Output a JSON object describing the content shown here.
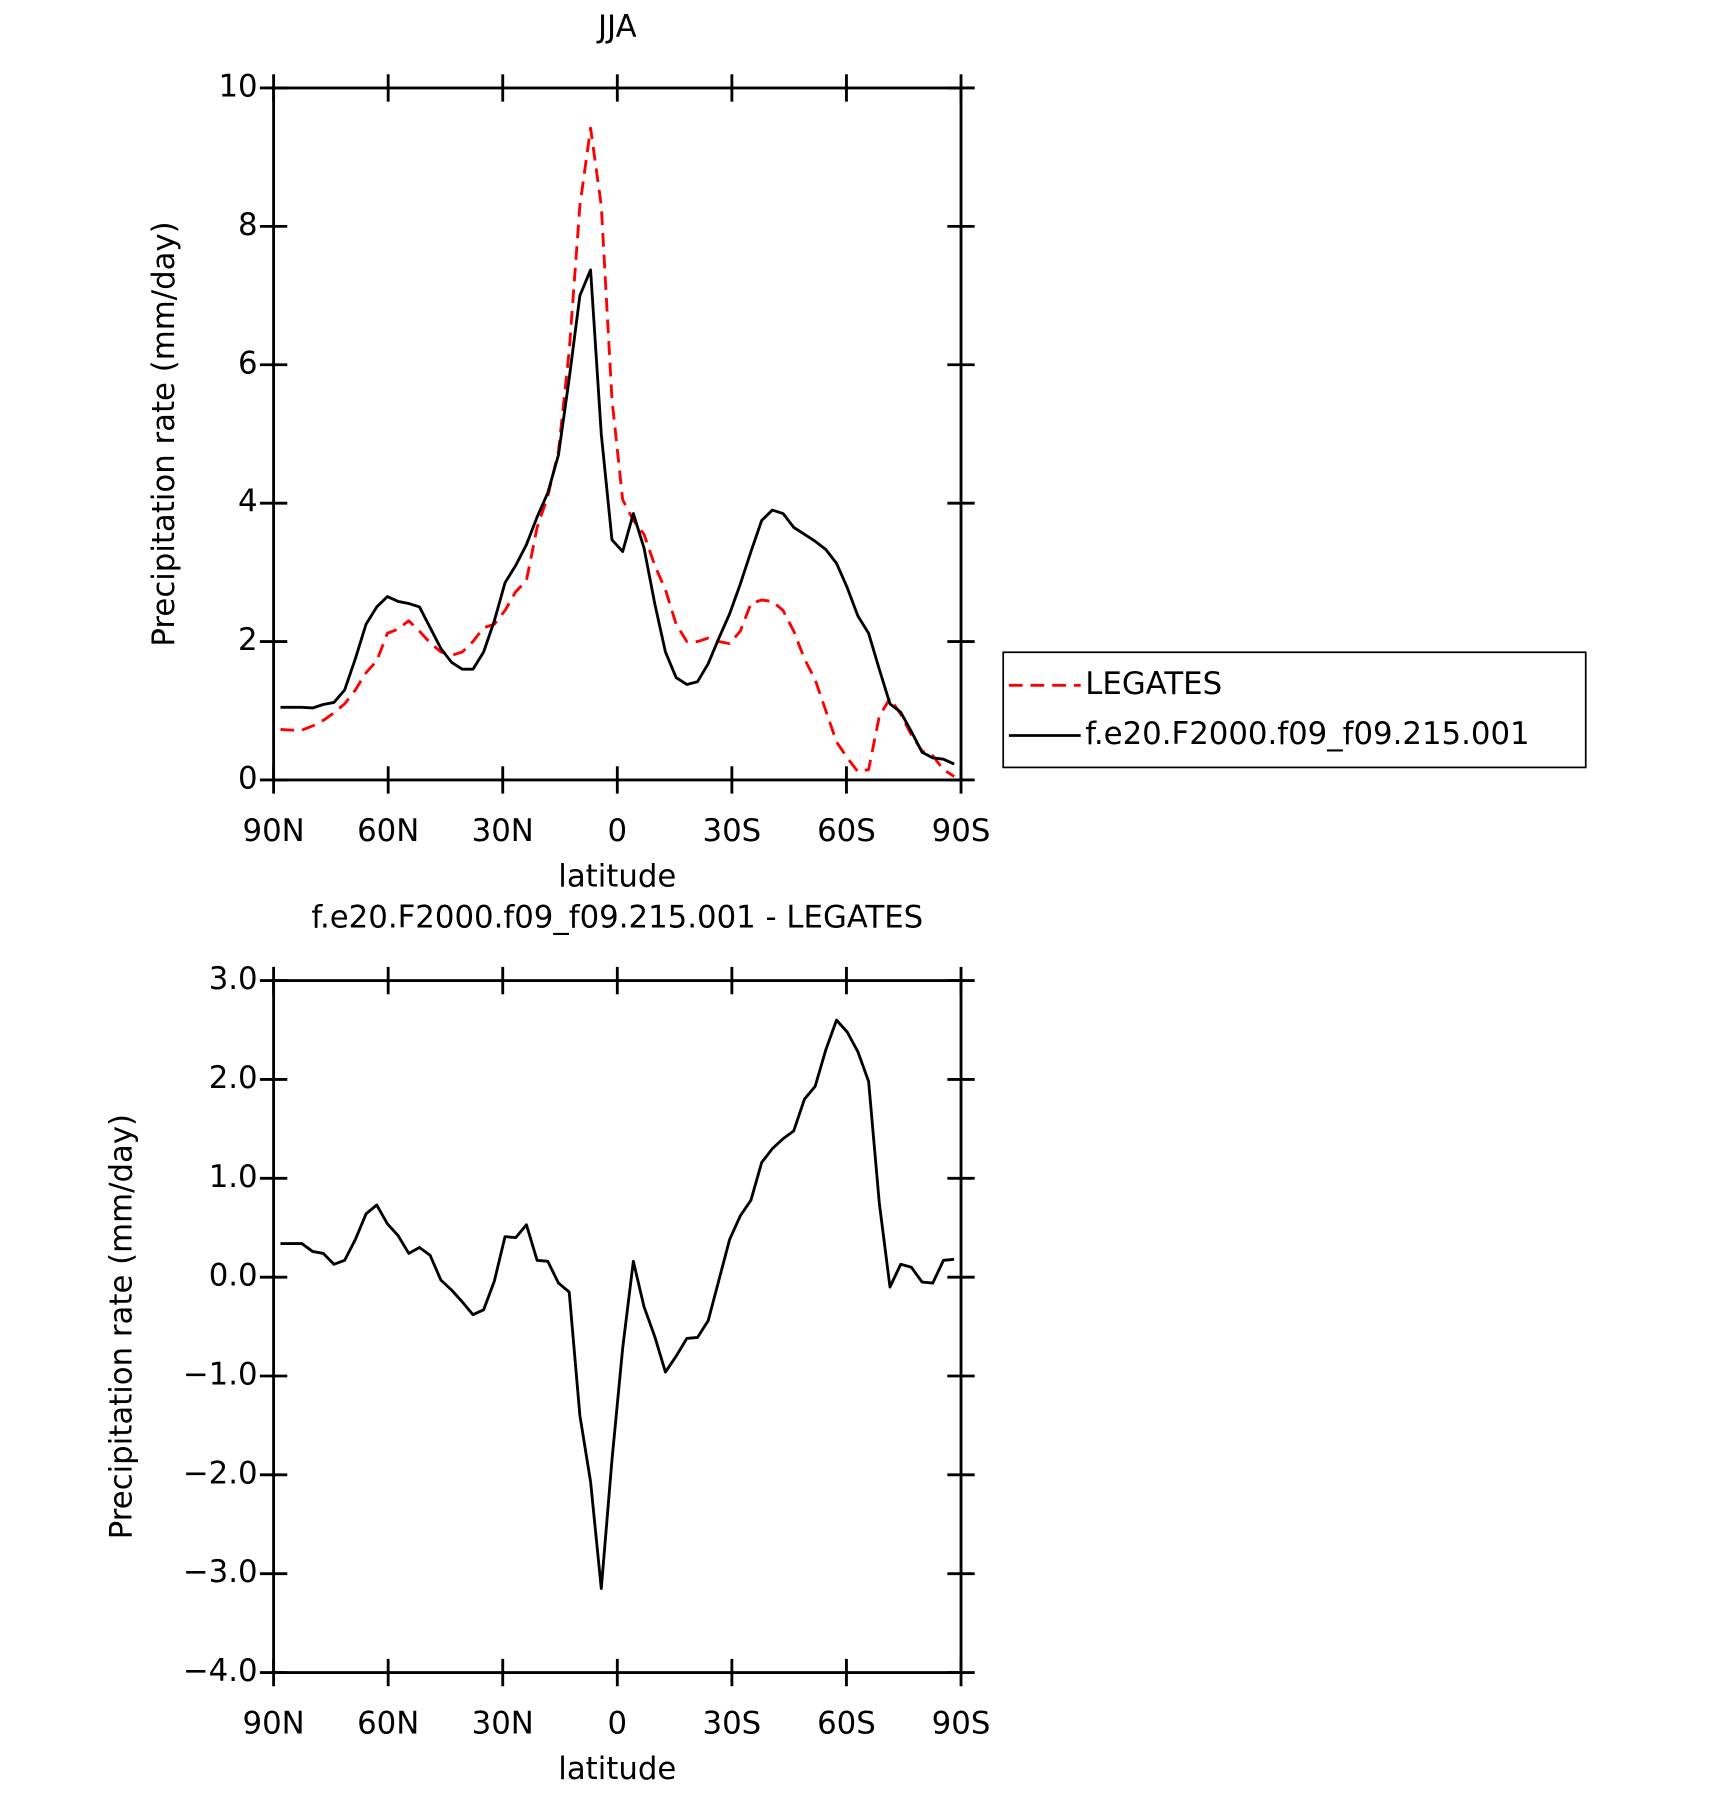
{
  "chart_data": [
    {
      "type": "line",
      "title": "JJA",
      "xlabel": "latitude",
      "ylabel": "Precipitation rate (mm/day)",
      "x": [
        88.2,
        85.4,
        82.6,
        79.8,
        77,
        74.2,
        71.4,
        68.6,
        65.8,
        63,
        60.2,
        57.4,
        54.6,
        51.8,
        49,
        46.2,
        43.4,
        40.6,
        37.8,
        35,
        32.2,
        29.4,
        26.6,
        23.8,
        21,
        18.2,
        15.4,
        12.6,
        9.8,
        7,
        4.2,
        1.4,
        -1.4,
        -4.2,
        -7,
        -9.8,
        -12.6,
        -15.4,
        -18.2,
        -21,
        -23.8,
        -26.6,
        -29.4,
        -32.2,
        -35,
        -37.8,
        -40.6,
        -43.4,
        -46.2,
        -49,
        -51.8,
        -54.6,
        -57.4,
        -60.2,
        -63,
        -65.8,
        -68.6,
        -71.4,
        -74.2,
        -77,
        -79.8,
        -82.6,
        -85.4,
        -88.2
      ],
      "series": [
        {
          "name": "LEGATES",
          "color": "#ff0000",
          "style": "dashed",
          "values": [
            0.73,
            0.72,
            0.72,
            0.78,
            0.86,
            0.97,
            1.1,
            1.3,
            1.55,
            1.72,
            2.12,
            2.18,
            2.3,
            2.15,
            1.98,
            1.85,
            1.8,
            1.85,
            2.0,
            2.2,
            2.25,
            2.45,
            2.72,
            2.88,
            3.65,
            4.1,
            4.75,
            6.2,
            8.3,
            9.42,
            8.3,
            5.5,
            4.05,
            3.75,
            3.55,
            3.1,
            2.75,
            2.25,
            2.0,
            2.0,
            2.05,
            2.0,
            1.97,
            2.15,
            2.55,
            2.6,
            2.58,
            2.45,
            2.15,
            1.75,
            1.45,
            1.0,
            0.55,
            0.32,
            0.12,
            0.15,
            0.92,
            1.18,
            0.95,
            0.65,
            0.42,
            0.35,
            0.15,
            0.05
          ]
        },
        {
          "name": "f.e20.F2000.f09_f09.215.001",
          "color": "#000000",
          "style": "solid",
          "values": [
            1.05,
            1.05,
            1.05,
            1.04,
            1.09,
            1.12,
            1.3,
            1.75,
            2.25,
            2.5,
            2.65,
            2.58,
            2.55,
            2.5,
            2.2,
            1.9,
            1.7,
            1.6,
            1.6,
            1.85,
            2.3,
            2.85,
            3.1,
            3.4,
            3.8,
            4.15,
            4.7,
            5.8,
            7.0,
            7.37,
            5.0,
            3.47,
            3.3,
            3.85,
            3.35,
            2.55,
            1.85,
            1.48,
            1.38,
            1.42,
            1.68,
            2.05,
            2.4,
            2.83,
            3.3,
            3.75,
            3.9,
            3.85,
            3.65,
            3.55,
            3.45,
            3.33,
            3.13,
            2.78,
            2.37,
            2.12,
            1.6,
            1.1,
            0.98,
            0.7,
            0.4,
            0.32,
            0.3,
            0.23
          ]
        }
      ],
      "xlim": [
        90,
        -90
      ],
      "xticks": [
        {
          "value": 90,
          "label": "90N"
        },
        {
          "value": 60,
          "label": "60N"
        },
        {
          "value": 30,
          "label": "30N"
        },
        0,
        {
          "value": -30,
          "label": "30S"
        },
        {
          "value": -60,
          "label": "60S"
        },
        {
          "value": -90,
          "label": "90S"
        }
      ],
      "ylim": [
        0,
        10
      ],
      "yticks": [
        0,
        2,
        4,
        6,
        8,
        10
      ],
      "legend": "right"
    },
    {
      "type": "line",
      "title": "f.e20.F2000.f09_f09.215.001 - LEGATES",
      "xlabel": "latitude",
      "ylabel": "Precipitation rate (mm/day)",
      "x": [
        88.2,
        85.4,
        82.6,
        79.8,
        77,
        74.2,
        71.4,
        68.6,
        65.8,
        63,
        60.2,
        57.4,
        54.6,
        51.8,
        49,
        46.2,
        43.4,
        40.6,
        37.8,
        35,
        32.2,
        29.4,
        26.6,
        23.8,
        21,
        18.2,
        15.4,
        12.6,
        9.8,
        7,
        4.2,
        1.4,
        -1.4,
        -4.2,
        -7,
        -9.8,
        -12.6,
        -15.4,
        -18.2,
        -21,
        -23.8,
        -26.6,
        -29.4,
        -32.2,
        -35,
        -37.8,
        -40.6,
        -43.4,
        -46.2,
        -49,
        -51.8,
        -54.6,
        -57.4,
        -60.2,
        -63,
        -65.8,
        -68.6,
        -71.4,
        -74.2,
        -77,
        -79.8,
        -82.6,
        -85.4,
        -88.2
      ],
      "series": [
        {
          "color": "#000000",
          "style": "solid",
          "values": [
            0.34,
            0.34,
            0.34,
            0.26,
            0.24,
            0.13,
            0.17,
            0.38,
            0.64,
            0.73,
            0.54,
            0.42,
            0.24,
            0.3,
            0.22,
            -0.03,
            -0.13,
            -0.25,
            -0.38,
            -0.33,
            -0.04,
            0.41,
            0.4,
            0.53,
            0.17,
            0.16,
            -0.06,
            -0.15,
            -1.4,
            -2.07,
            -3.15,
            -1.85,
            -0.72,
            0.16,
            -0.3,
            -0.6,
            -0.96,
            -0.8,
            -0.62,
            -0.61,
            -0.44,
            -0.03,
            0.38,
            0.62,
            0.78,
            1.16,
            1.3,
            1.4,
            1.48,
            1.8,
            1.93,
            2.3,
            2.6,
            2.48,
            2.28,
            1.98,
            0.75,
            -0.1,
            0.13,
            0.1,
            -0.05,
            -0.06,
            0.17,
            0.18
          ]
        }
      ],
      "xlim": [
        90,
        -90
      ],
      "xticks": [
        {
          "value": 90,
          "label": "90N"
        },
        {
          "value": 60,
          "label": "60N"
        },
        {
          "value": 30,
          "label": "30N"
        },
        0,
        {
          "value": -30,
          "label": "30S"
        },
        {
          "value": -60,
          "label": "60S"
        },
        {
          "value": -90,
          "label": "90S"
        }
      ],
      "ylim": [
        -4,
        3
      ],
      "yticks": [
        {
          "value": 3,
          "label": "3.0"
        },
        {
          "value": 2,
          "label": "2.0"
        },
        {
          "value": 1,
          "label": "1.0"
        },
        {
          "value": 0,
          "label": "0.0"
        },
        {
          "value": -1,
          "label": "−1.0"
        },
        {
          "value": -2,
          "label": "−2.0"
        },
        {
          "value": -3,
          "label": "−3.0"
        },
        {
          "value": -4,
          "label": "−4.0"
        }
      ]
    }
  ]
}
